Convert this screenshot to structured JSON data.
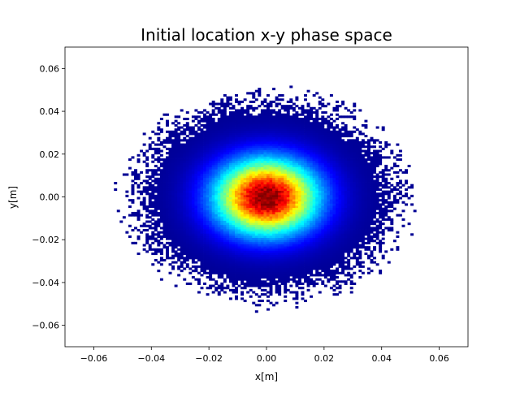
{
  "chart_data": {
    "type": "heatmap",
    "title": "Initial location x-y phase space",
    "xlabel": "x[m]",
    "ylabel": "y[m]",
    "xlim": [
      -0.07,
      0.07
    ],
    "ylim": [
      -0.07,
      0.07
    ],
    "x_ticks": [
      -0.06,
      -0.04,
      -0.02,
      0.0,
      0.02,
      0.04,
      0.06
    ],
    "y_ticks": [
      -0.06,
      -0.04,
      -0.02,
      0.0,
      0.02,
      0.04,
      0.06
    ],
    "x_tick_labels": [
      "−0.06",
      "−0.04",
      "−0.02",
      "0.00",
      "0.02",
      "0.04",
      "0.06"
    ],
    "y_tick_labels": [
      "−0.06",
      "−0.04",
      "−0.02",
      "0.00",
      "0.02",
      "0.04",
      "0.06"
    ],
    "bin_size": 0.001,
    "distribution": {
      "center": [
        0.0,
        0.0
      ],
      "sigma": 0.012,
      "peak_value": 1.0,
      "extent_radius": 0.055
    },
    "colormap": "jet",
    "empty_bins_color": "#ffffff",
    "grid": false,
    "legend": "none"
  }
}
